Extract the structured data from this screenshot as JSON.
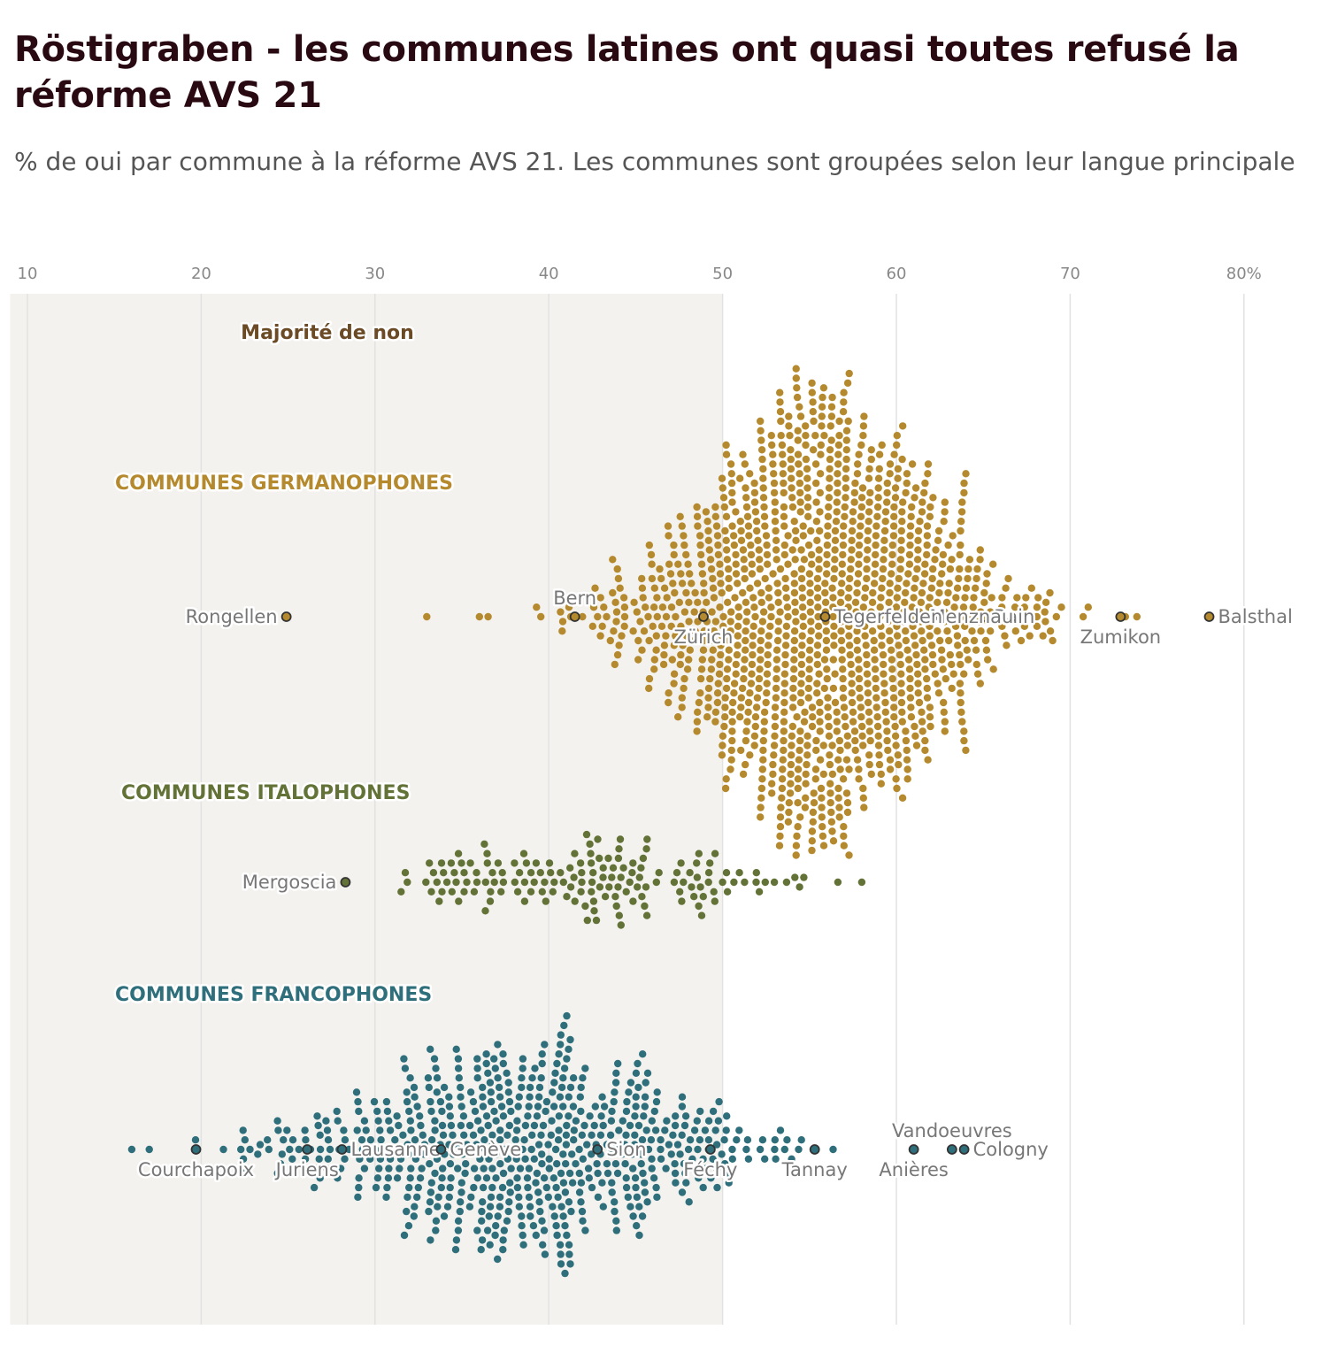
{
  "title": "Röstigraben - les communes latines ont quasi toutes refusé la réforme AVS 21",
  "subtitle": "% de oui par commune à la réforme AVS 21. Les communes sont groupées selon leur langue principale",
  "colors": {
    "germanophones": "#b58a2e",
    "italophones": "#637337",
    "francophones": "#2f6f7c",
    "no_zone": "#f3f2ee",
    "grid": "#e2e2e2",
    "highlight_stroke": "#333333"
  },
  "chart_data": {
    "type": "scatter",
    "chart_style": "beeswarm",
    "x_unit": "% de oui",
    "xlim": [
      9,
      84
    ],
    "x_ticks": [
      10,
      20,
      30,
      40,
      50,
      60,
      70,
      80
    ],
    "x_tick_labels": [
      "10",
      "20",
      "30",
      "40",
      "50",
      "60",
      "70",
      "80%"
    ],
    "grid": true,
    "no_zone": {
      "from": 9,
      "to": 50,
      "label": "Majorité de non"
    },
    "groups": [
      {
        "name": "COMMUNES GERMANOPHONES",
        "color_key": "germanophones",
        "distribution": {
          "count": 1300,
          "mean": 55.5,
          "sd": 5.6,
          "min": 30.5,
          "max": 74.5
        },
        "highlighted": [
          {
            "name": "Rongellen",
            "value": 24.9,
            "label_side": "left"
          },
          {
            "name": "Bern",
            "value": 41.5,
            "label_side": "above"
          },
          {
            "name": "Zürich",
            "value": 48.9,
            "label_side": "below"
          },
          {
            "name": "Balsthal",
            "value": 78.0,
            "label_side": "right"
          },
          {
            "name": "Zumikon",
            "value": 72.9,
            "label_side": "below"
          },
          {
            "name": "Rain",
            "value": 65.1,
            "label_side": "right"
          },
          {
            "name": "Menznau",
            "value": 61.4,
            "label_side": "right"
          },
          {
            "name": "Tegerfelden",
            "value": 55.9,
            "label_side": "right"
          }
        ]
      },
      {
        "name": "COMMUNES ITALOPHONES",
        "color_key": "italophones",
        "distribution": {
          "count": 160,
          "mean": 42.5,
          "sd": 6.5,
          "min": 31,
          "max": 60.5
        },
        "highlighted": [
          {
            "name": "Mergoscia",
            "value": 28.3,
            "label_side": "left"
          }
        ]
      },
      {
        "name": "COMMUNES FRANCOPHONES",
        "color_key": "francophones",
        "distribution": {
          "count": 630,
          "mean": 38.0,
          "sd": 7.0,
          "min": 15.5,
          "max": 59.5
        },
        "highlighted": [
          {
            "name": "Courchapoix",
            "value": 19.7,
            "label_side": "below"
          },
          {
            "name": "Juriens",
            "value": 26.1,
            "label_side": "below"
          },
          {
            "name": "Lausanne",
            "value": 28.1,
            "label_side": "right"
          },
          {
            "name": "Genève",
            "value": 33.8,
            "label_side": "right"
          },
          {
            "name": "Sion",
            "value": 42.8,
            "label_side": "right"
          },
          {
            "name": "Féchy",
            "value": 49.3,
            "label_side": "below"
          },
          {
            "name": "Tannay",
            "value": 55.3,
            "label_side": "below"
          },
          {
            "name": "Anières",
            "value": 61.0,
            "label_side": "below"
          },
          {
            "name": "Vandoeuvres",
            "value": 63.2,
            "label_side": "above"
          },
          {
            "name": "Cologny",
            "value": 63.9,
            "label_side": "right"
          }
        ]
      }
    ]
  }
}
